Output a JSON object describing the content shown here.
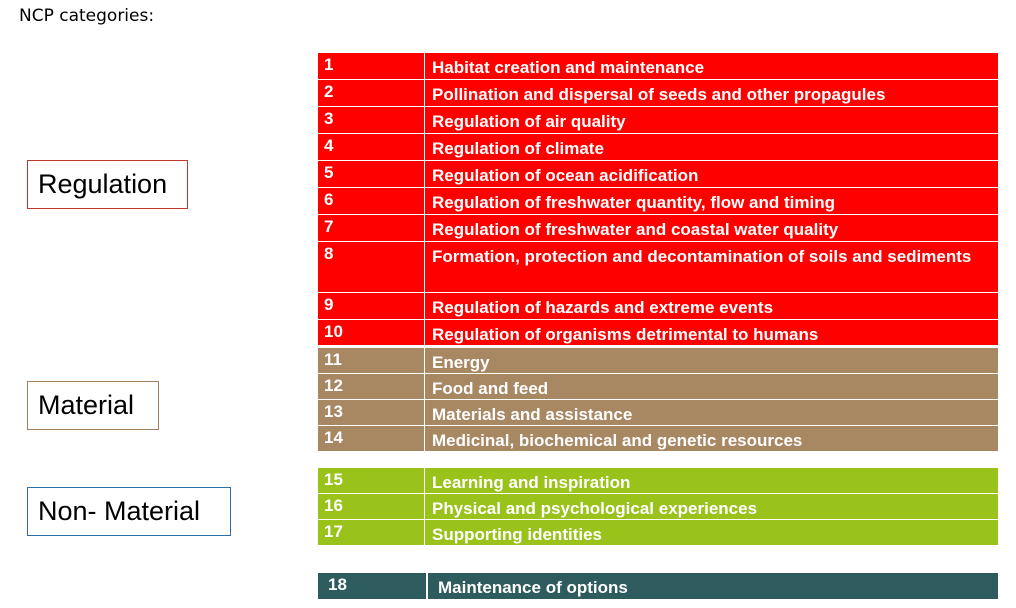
{
  "title": "NCP categories:",
  "categories": {
    "regulation": "Regulation",
    "material": "Material",
    "non_material": "Non- Material"
  },
  "colors": {
    "regulation": "#ff0000",
    "material": "#a88763",
    "non_material": "#99c21a",
    "options": "#2e5b5e"
  },
  "rows": [
    {
      "num": "1",
      "text": "Habitat creation and maintenance"
    },
    {
      "num": "2",
      "text": "Pollination and dispersal of seeds and other propagules"
    },
    {
      "num": "3",
      "text": "Regulation of air quality"
    },
    {
      "num": "4",
      "text": "Regulation of climate"
    },
    {
      "num": "5",
      "text": "Regulation of ocean acidification"
    },
    {
      "num": "6",
      "text": "Regulation of freshwater quantity, flow and timing"
    },
    {
      "num": "7",
      "text": "Regulation of freshwater and coastal water quality"
    },
    {
      "num": "8",
      "text": "Formation, protection and decontamination of soils and sediments"
    },
    {
      "num": "9",
      "text": "Regulation of hazards and extreme events"
    },
    {
      "num": "10",
      "text": "Regulation of organisms detrimental to humans"
    },
    {
      "num": "11",
      "text": "Energy"
    },
    {
      "num": "12",
      "text": "Food and feed"
    },
    {
      "num": "13",
      "text": "Materials and assistance"
    },
    {
      "num": "14",
      "text": "Medicinal, biochemical and genetic resources"
    },
    {
      "num": "15",
      "text": "Learning and inspiration"
    },
    {
      "num": "16",
      "text": "Physical and psychological experiences"
    },
    {
      "num": "17",
      "text": "Supporting identities"
    },
    {
      "num": "18",
      "text": "Maintenance of options"
    }
  ]
}
